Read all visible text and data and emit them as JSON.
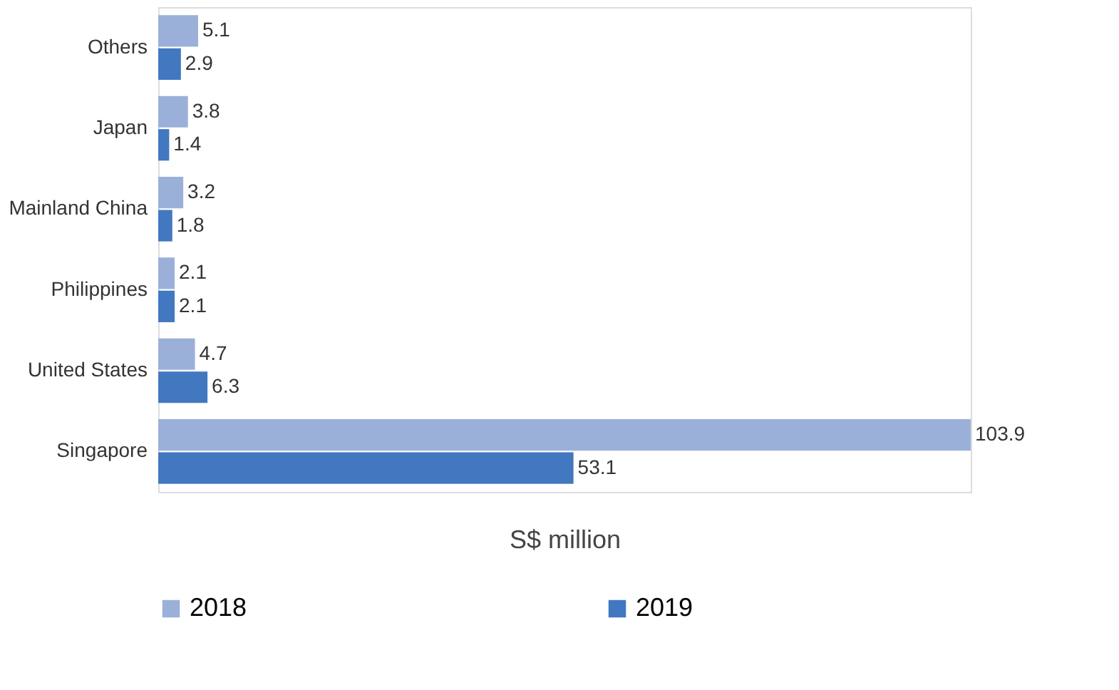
{
  "chart_data": {
    "type": "bar",
    "orientation": "horizontal",
    "xlabel": "S$ million",
    "categories": [
      "Others",
      "Japan",
      "Mainland China",
      "Philippines",
      "United States",
      "Singapore"
    ],
    "series": [
      {
        "name": "2018",
        "color": "#9bb0d9",
        "values": [
          5.1,
          3.8,
          3.2,
          2.1,
          4.7,
          103.9
        ]
      },
      {
        "name": "2019",
        "color": "#4278c0",
        "values": [
          2.9,
          1.4,
          1.8,
          2.1,
          6.3,
          53.1
        ]
      }
    ],
    "data_labels": true,
    "legend": "bottom",
    "tick_labels": "y",
    "grid": false
  }
}
